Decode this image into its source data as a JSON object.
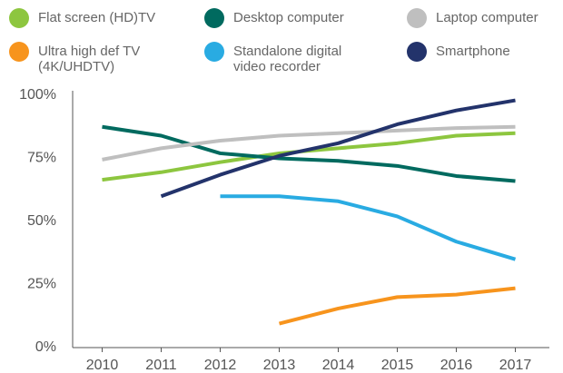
{
  "chart_data": {
    "type": "line",
    "categories": [
      2010,
      2011,
      2012,
      2013,
      2014,
      2015,
      2016,
      2017
    ],
    "series": [
      {
        "name": "Flat screen (HD)TV",
        "color": "#8dc63f",
        "values": [
          66.5,
          69.5,
          73.5,
          77,
          79,
          81,
          84,
          85
        ]
      },
      {
        "name": "Ultra high def TV (4K/UHDTV)",
        "color": "#f7941d",
        "values": [
          null,
          null,
          null,
          9.5,
          15.5,
          20,
          21,
          23.5
        ]
      },
      {
        "name": "Desktop computer",
        "color": "#006a5f",
        "values": [
          87.5,
          84,
          77,
          75,
          74,
          72,
          68,
          66
        ]
      },
      {
        "name": "Standalone digital video recorder",
        "color": "#29abe2",
        "values": [
          null,
          null,
          60,
          60,
          58,
          52,
          42,
          35
        ]
      },
      {
        "name": "Laptop computer",
        "color": "#bfbfbf",
        "values": [
          74.5,
          79,
          82,
          84,
          85,
          86,
          87,
          87.5
        ]
      },
      {
        "name": "Smartphone",
        "color": "#23336b",
        "values": [
          null,
          60,
          68.5,
          76,
          81,
          88.5,
          94,
          98
        ]
      }
    ],
    "ylim": [
      0,
      100
    ],
    "yticks": [
      {
        "value": 0,
        "label": "0%"
      },
      {
        "value": 25,
        "label": "25%"
      },
      {
        "value": 50,
        "label": "50%"
      },
      {
        "value": 75,
        "label": "75%"
      },
      {
        "value": 100,
        "label": "100%"
      }
    ],
    "grid": false
  }
}
